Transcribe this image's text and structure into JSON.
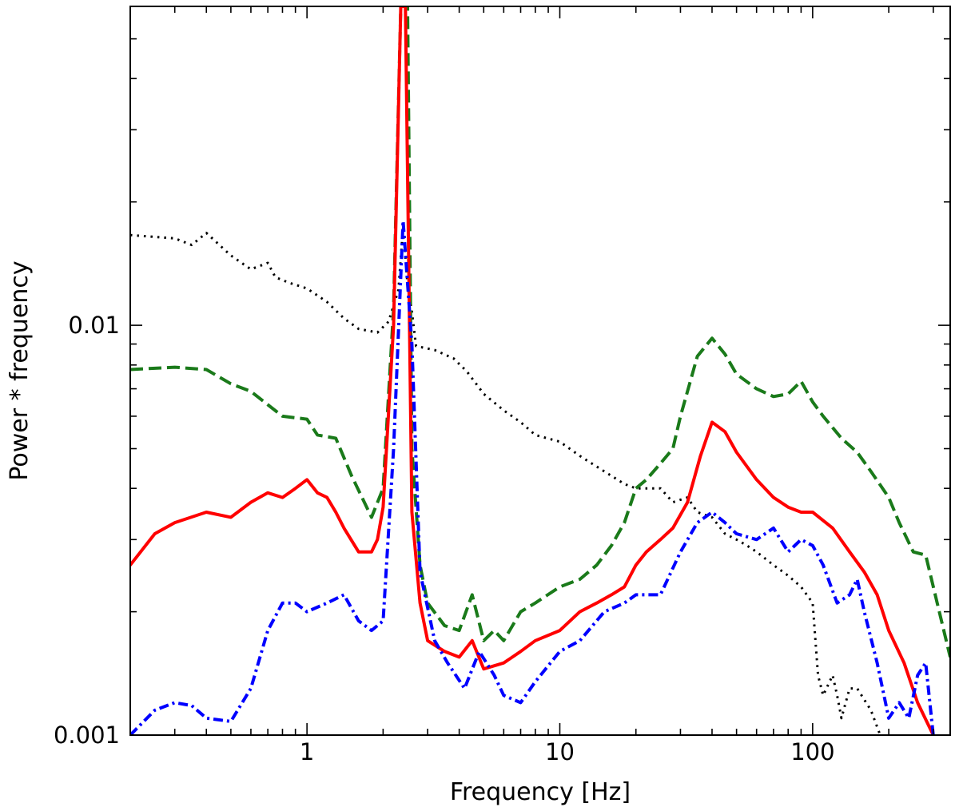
{
  "chart_data": {
    "type": "line",
    "title": "",
    "xlabel": "Frequency [Hz]",
    "ylabel": "Power * frequency",
    "xscale": "log",
    "yscale": "log",
    "xlim": [
      0.2,
      350
    ],
    "ylim": [
      0.001,
      0.06
    ],
    "x_tick_labels": [
      {
        "value": 1,
        "label": "1"
      },
      {
        "value": 10,
        "label": "10"
      },
      {
        "value": 100,
        "label": "100"
      }
    ],
    "y_tick_labels": [
      {
        "value": 0.001,
        "label": "0.001"
      },
      {
        "value": 0.01,
        "label": "0.01"
      }
    ],
    "legend": null,
    "series": [
      {
        "name": "black dotted",
        "color": "#000000",
        "style": "dotted",
        "points": [
          [
            0.2,
            0.0166
          ],
          [
            0.3,
            0.0163
          ],
          [
            0.35,
            0.0157
          ],
          [
            0.4,
            0.0168
          ],
          [
            0.5,
            0.0148
          ],
          [
            0.6,
            0.0137
          ],
          [
            0.7,
            0.0142
          ],
          [
            0.75,
            0.0131
          ],
          [
            0.85,
            0.0127
          ],
          [
            1.0,
            0.0123
          ],
          [
            1.2,
            0.0114
          ],
          [
            1.4,
            0.0104
          ],
          [
            1.6,
            0.0098
          ],
          [
            1.9,
            0.0096
          ],
          [
            2.1,
            0.0102
          ],
          [
            2.3,
            0.0122
          ],
          [
            2.4,
            0.0174
          ],
          [
            2.5,
            0.0125
          ],
          [
            2.6,
            0.0108
          ],
          [
            2.7,
            0.0089
          ],
          [
            3.2,
            0.0087
          ],
          [
            3.8,
            0.0083
          ],
          [
            4.3,
            0.0077
          ],
          [
            5.0,
            0.0068
          ],
          [
            6.0,
            0.0062
          ],
          [
            7.0,
            0.0058
          ],
          [
            8.0,
            0.0054
          ],
          [
            10.0,
            0.0052
          ],
          [
            12.0,
            0.0048
          ],
          [
            15.0,
            0.0044
          ],
          [
            18.0,
            0.0041
          ],
          [
            20.0,
            0.004
          ],
          [
            25.0,
            0.004
          ],
          [
            28.0,
            0.0037
          ],
          [
            32.0,
            0.0038
          ],
          [
            35.0,
            0.0035
          ],
          [
            40.0,
            0.0034
          ],
          [
            45.0,
            0.0031
          ],
          [
            50.0,
            0.003
          ],
          [
            55.0,
            0.0029
          ],
          [
            60.0,
            0.0028
          ],
          [
            70.0,
            0.0026
          ],
          [
            80.0,
            0.00245
          ],
          [
            90.0,
            0.0023
          ],
          [
            100.0,
            0.0021
          ],
          [
            105.0,
            0.0014
          ],
          [
            110.0,
            0.00125
          ],
          [
            120.0,
            0.0014
          ],
          [
            125.0,
            0.00125
          ],
          [
            130.0,
            0.0011
          ],
          [
            140.0,
            0.0013
          ],
          [
            150.0,
            0.0013
          ],
          [
            170.0,
            0.00115
          ],
          [
            185.0,
            0.001
          ]
        ]
      },
      {
        "name": "green dashed",
        "color": "#1a7a1a",
        "style": "dashed",
        "points": [
          [
            0.2,
            0.0078
          ],
          [
            0.3,
            0.0079
          ],
          [
            0.4,
            0.0078
          ],
          [
            0.5,
            0.0072
          ],
          [
            0.6,
            0.0069
          ],
          [
            0.7,
            0.0064
          ],
          [
            0.8,
            0.006
          ],
          [
            1.0,
            0.0059
          ],
          [
            1.1,
            0.0054
          ],
          [
            1.3,
            0.0053
          ],
          [
            1.5,
            0.0043
          ],
          [
            1.8,
            0.0034
          ],
          [
            2.0,
            0.004
          ],
          [
            2.2,
            0.011
          ],
          [
            2.35,
            0.06
          ],
          [
            2.5,
            0.06
          ],
          [
            2.6,
            0.005
          ],
          [
            2.8,
            0.0026
          ],
          [
            3.0,
            0.0021
          ],
          [
            3.5,
            0.00185
          ],
          [
            4.0,
            0.0018
          ],
          [
            4.5,
            0.0022
          ],
          [
            5.0,
            0.0017
          ],
          [
            5.5,
            0.0018
          ],
          [
            6.0,
            0.0017
          ],
          [
            7.0,
            0.002
          ],
          [
            8.0,
            0.0021
          ],
          [
            10.0,
            0.0023
          ],
          [
            12.0,
            0.0024
          ],
          [
            14.0,
            0.0026
          ],
          [
            16.0,
            0.0029
          ],
          [
            18.0,
            0.0033
          ],
          [
            20.0,
            0.004
          ],
          [
            22.0,
            0.0042
          ],
          [
            25.0,
            0.0046
          ],
          [
            28.0,
            0.005
          ],
          [
            30.0,
            0.006
          ],
          [
            35.0,
            0.0084
          ],
          [
            40.0,
            0.0093
          ],
          [
            45.0,
            0.0085
          ],
          [
            50.0,
            0.0076
          ],
          [
            60.0,
            0.007
          ],
          [
            70.0,
            0.0067
          ],
          [
            80.0,
            0.0068
          ],
          [
            90.0,
            0.0073
          ],
          [
            100.0,
            0.0065
          ],
          [
            110.0,
            0.006
          ],
          [
            130.0,
            0.0053
          ],
          [
            150.0,
            0.0049
          ],
          [
            170.0,
            0.0044
          ],
          [
            200.0,
            0.0038
          ],
          [
            220.0,
            0.0033
          ],
          [
            250.0,
            0.0028
          ],
          [
            280.0,
            0.00275
          ],
          [
            350.0,
            0.00155
          ]
        ]
      },
      {
        "name": "red solid",
        "color": "#ff0000",
        "style": "solid",
        "points": [
          [
            0.2,
            0.0026
          ],
          [
            0.25,
            0.0031
          ],
          [
            0.3,
            0.0033
          ],
          [
            0.4,
            0.0035
          ],
          [
            0.5,
            0.0034
          ],
          [
            0.6,
            0.0037
          ],
          [
            0.7,
            0.0039
          ],
          [
            0.8,
            0.0038
          ],
          [
            0.9,
            0.004
          ],
          [
            1.0,
            0.0042
          ],
          [
            1.1,
            0.0039
          ],
          [
            1.2,
            0.0038
          ],
          [
            1.3,
            0.0035
          ],
          [
            1.4,
            0.0032
          ],
          [
            1.6,
            0.0028
          ],
          [
            1.8,
            0.0028
          ],
          [
            1.9,
            0.003
          ],
          [
            2.0,
            0.0036
          ],
          [
            2.2,
            0.01
          ],
          [
            2.35,
            0.06
          ],
          [
            2.45,
            0.06
          ],
          [
            2.6,
            0.0035
          ],
          [
            2.8,
            0.0021
          ],
          [
            3.0,
            0.0017
          ],
          [
            3.5,
            0.0016
          ],
          [
            4.0,
            0.00155
          ],
          [
            4.5,
            0.0017
          ],
          [
            5.0,
            0.00145
          ],
          [
            6.0,
            0.0015
          ],
          [
            7.0,
            0.0016
          ],
          [
            8.0,
            0.0017
          ],
          [
            10.0,
            0.0018
          ],
          [
            12.0,
            0.002
          ],
          [
            14.0,
            0.0021
          ],
          [
            16.0,
            0.0022
          ],
          [
            18.0,
            0.0023
          ],
          [
            20.0,
            0.0026
          ],
          [
            22.0,
            0.0028
          ],
          [
            25.0,
            0.003
          ],
          [
            28.0,
            0.0032
          ],
          [
            32.0,
            0.0037
          ],
          [
            36.0,
            0.0048
          ],
          [
            40.0,
            0.0058
          ],
          [
            45.0,
            0.0055
          ],
          [
            50.0,
            0.0049
          ],
          [
            60.0,
            0.0042
          ],
          [
            70.0,
            0.0038
          ],
          [
            80.0,
            0.0036
          ],
          [
            90.0,
            0.0035
          ],
          [
            100.0,
            0.0035
          ],
          [
            120.0,
            0.0032
          ],
          [
            140.0,
            0.0028
          ],
          [
            160.0,
            0.0025
          ],
          [
            180.0,
            0.0022
          ],
          [
            200.0,
            0.0018
          ],
          [
            230.0,
            0.0015
          ],
          [
            260.0,
            0.0012
          ],
          [
            300.0,
            0.001
          ]
        ]
      },
      {
        "name": "blue dash-dot",
        "color": "#0000ff",
        "style": "dashdot",
        "points": [
          [
            0.2,
            0.001
          ],
          [
            0.25,
            0.00115
          ],
          [
            0.3,
            0.0012
          ],
          [
            0.35,
            0.00118
          ],
          [
            0.4,
            0.0011
          ],
          [
            0.5,
            0.00108
          ],
          [
            0.6,
            0.0013
          ],
          [
            0.7,
            0.0018
          ],
          [
            0.8,
            0.0021
          ],
          [
            0.9,
            0.0021
          ],
          [
            1.0,
            0.002
          ],
          [
            1.2,
            0.0021
          ],
          [
            1.4,
            0.0022
          ],
          [
            1.6,
            0.0019
          ],
          [
            1.8,
            0.0018
          ],
          [
            2.0,
            0.0019
          ],
          [
            2.2,
            0.005
          ],
          [
            2.4,
            0.018
          ],
          [
            2.6,
            0.009
          ],
          [
            2.8,
            0.0025
          ],
          [
            3.2,
            0.0017
          ],
          [
            3.6,
            0.0015
          ],
          [
            4.2,
            0.0013
          ],
          [
            4.8,
            0.0016
          ],
          [
            5.5,
            0.0014
          ],
          [
            6.0,
            0.00125
          ],
          [
            7.0,
            0.0012
          ],
          [
            8.0,
            0.00135
          ],
          [
            10.0,
            0.0016
          ],
          [
            12.0,
            0.0017
          ],
          [
            15.0,
            0.002
          ],
          [
            18.0,
            0.0021
          ],
          [
            20.0,
            0.0022
          ],
          [
            25.0,
            0.0022
          ],
          [
            30.0,
            0.0028
          ],
          [
            35.0,
            0.0033
          ],
          [
            40.0,
            0.0035
          ],
          [
            45.0,
            0.0033
          ],
          [
            50.0,
            0.0031
          ],
          [
            60.0,
            0.003
          ],
          [
            70.0,
            0.0032
          ],
          [
            80.0,
            0.0028
          ],
          [
            90.0,
            0.003
          ],
          [
            100.0,
            0.0029
          ],
          [
            110.0,
            0.0026
          ],
          [
            125.0,
            0.0021
          ],
          [
            140.0,
            0.0022
          ],
          [
            150.0,
            0.0024
          ],
          [
            160.0,
            0.002
          ],
          [
            180.0,
            0.0015
          ],
          [
            200.0,
            0.0011
          ],
          [
            220.0,
            0.0012
          ],
          [
            240.0,
            0.0011
          ],
          [
            260.0,
            0.0014
          ],
          [
            280.0,
            0.0015
          ],
          [
            300.0,
            0.001
          ]
        ]
      }
    ]
  }
}
